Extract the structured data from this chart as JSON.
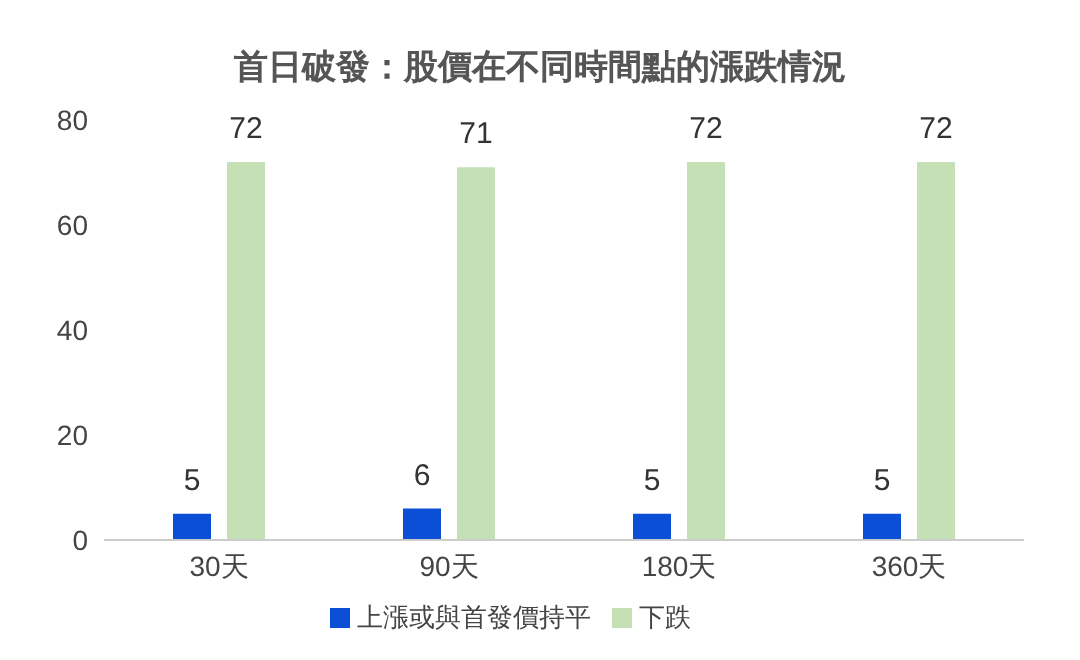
{
  "chart_data": {
    "type": "bar",
    "title": "首日破發：股價在不同時間點的漲跌情況",
    "categories": [
      "30天",
      "90天",
      "180天",
      "360天"
    ],
    "series": [
      {
        "name": "上漲或與首發價持平",
        "color": "#0a4fd6",
        "values": [
          5,
          6,
          5,
          5
        ]
      },
      {
        "name": "下跌",
        "color": "#c5e0b4",
        "values": [
          72,
          71,
          72,
          72
        ]
      }
    ],
    "ylim": [
      0,
      80
    ],
    "yticks": [
      0,
      20,
      40,
      60,
      80
    ],
    "grid": false,
    "legend": "bottom",
    "data_labels": true
  }
}
